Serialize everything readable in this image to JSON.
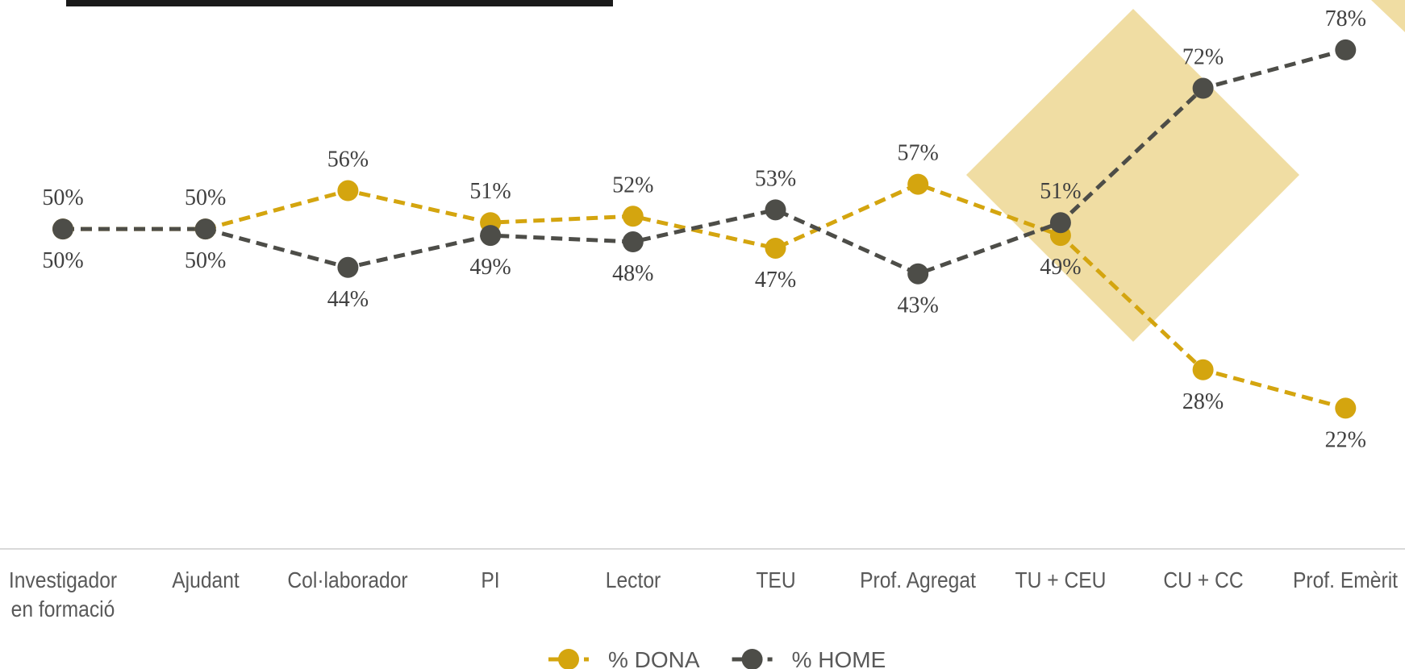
{
  "chart_data": {
    "type": "line",
    "categories": [
      "Investigador en formació",
      "Ajudant",
      "Col·laborador",
      "PI",
      "Lector",
      "TEU",
      "Prof. Agregat",
      "TU + CEU",
      "CU + CC",
      "Prof. Emèrit"
    ],
    "series": [
      {
        "name": "% DONA",
        "color": "#d4a50f",
        "values": [
          50,
          50,
          56,
          51,
          52,
          47,
          57,
          49,
          28,
          22
        ],
        "value_labels": [
          "50%",
          "50%",
          "56%",
          "51%",
          "52%",
          "47%",
          "57%",
          "49%",
          "28%",
          "22%"
        ]
      },
      {
        "name": "% HOME",
        "color": "#4d4d48",
        "values": [
          50,
          50,
          44,
          49,
          48,
          53,
          43,
          51,
          72,
          78
        ],
        "value_labels": [
          "50%",
          "50%",
          "44%",
          "49%",
          "48%",
          "53%",
          "43%",
          "51%",
          "72%",
          "78%"
        ]
      }
    ],
    "ylim": [
      0,
      100
    ],
    "legend": "bottom"
  }
}
